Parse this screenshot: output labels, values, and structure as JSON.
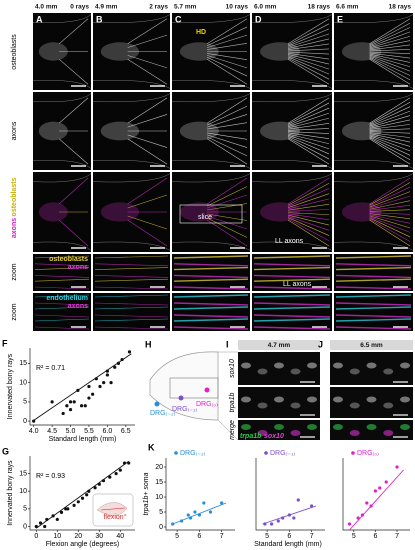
{
  "columns": [
    {
      "panel": "A",
      "length": "4.0 mm",
      "rays": "0 rays"
    },
    {
      "panel": "B",
      "length": "4.9 mm",
      "rays": "2 rays"
    },
    {
      "panel": "C",
      "length": "5.7 mm",
      "rays": "10 rays"
    },
    {
      "panel": "D",
      "length": "6.0 mm",
      "rays": "18 rays"
    },
    {
      "panel": "E",
      "length": "6.6 mm",
      "rays": "18 rays"
    }
  ],
  "rows": {
    "osteoblasts": "osteoblasts",
    "axons": "axons",
    "merge_axons": "axons",
    "merge_osteoblasts": "osteoblasts",
    "zoom1": "zoom",
    "zoom2": "zoom"
  },
  "zoom_keys": {
    "osteoblasts": "osteoblasts",
    "axons1": "axons",
    "endothelium": "endothelium",
    "axons2": "axons"
  },
  "annotations": {
    "hd": "HD",
    "slice": "slice",
    "ll1": "LL axons",
    "ll2": "LL axons"
  },
  "panel_h": {
    "label": "H",
    "drg": [
      "DRG₍₋₂₎",
      "DRG₍₋₁₎",
      "DRG₍₀₎"
    ]
  },
  "panel_i": {
    "label": "I",
    "length": "4.7 mm"
  },
  "panel_j": {
    "label": "J",
    "length": "6.5 mm"
  },
  "ij_rows": [
    "sox10",
    "trpa1b",
    "merge"
  ],
  "merge_key": [
    "trpa1b",
    "sox10"
  ],
  "chart_data": [
    {
      "type": "scatter",
      "panel": "F",
      "xlabel": "Standard length (mm)",
      "ylabel": "Innervated bony rays",
      "annotation": "R² = 0.71",
      "color": "#111111",
      "x": [
        4.0,
        4.5,
        4.8,
        4.9,
        5.0,
        5.0,
        5.1,
        5.2,
        5.3,
        5.4,
        5.5,
        5.5,
        5.6,
        5.7,
        5.8,
        5.9,
        6.0,
        6.0,
        6.1,
        6.2,
        6.3,
        6.4,
        6.6
      ],
      "values": [
        0,
        5,
        2,
        4,
        3,
        5,
        5,
        8,
        4,
        4,
        6,
        9,
        7,
        11,
        9,
        10,
        12,
        13,
        10,
        14,
        15,
        16,
        18
      ],
      "trendline": {
        "x": [
          4.0,
          6.65
        ],
        "values": [
          0.2,
          17.5
        ]
      },
      "xlim": [
        3.9,
        6.75
      ],
      "ylim": [
        -1,
        19
      ],
      "xticks": [
        {
          "value": 4,
          "label": "4.0"
        },
        4.5,
        {
          "value": 5,
          "label": "5.0"
        },
        5.5,
        {
          "value": 6,
          "label": "6.0"
        },
        6.5
      ],
      "yticks": [
        0,
        5,
        10,
        15
      ]
    },
    {
      "type": "scatter",
      "panel": "G",
      "xlabel": "Flexion angle (degrees)",
      "ylabel": "Innervated bony rays",
      "annotation": "R² = 0.93",
      "inset_label": "flexion°",
      "color": "#111111",
      "x": [
        0,
        2,
        4,
        5,
        8,
        10,
        12,
        14,
        15,
        18,
        20,
        22,
        24,
        25,
        28,
        30,
        32,
        35,
        38,
        40,
        42,
        44
      ],
      "values": [
        0,
        1,
        0,
        2,
        3,
        2,
        4,
        5,
        5,
        6,
        7,
        8,
        9,
        10,
        11,
        12,
        13,
        14,
        15,
        16,
        18,
        18
      ],
      "trendline": {
        "x": [
          0,
          44
        ],
        "values": [
          -0.5,
          18.5
        ]
      },
      "xlim": [
        -3,
        47
      ],
      "ylim": [
        -1,
        20
      ],
      "xticks": [
        0,
        10,
        20,
        30,
        40
      ],
      "yticks": [
        0,
        5,
        10,
        15
      ]
    },
    {
      "type": "scatter",
      "panel": "K",
      "ylabel": "trpa1b+ soma",
      "series": [
        {
          "name": "DRG₍₋₂₎",
          "color": "#2a8fd6",
          "x": [
            4.8,
            5.2,
            5.5,
            5.6,
            5.8,
            6.0,
            6.2,
            6.5,
            7.0
          ],
          "values": [
            1,
            2,
            4,
            3,
            5,
            4,
            8,
            5,
            8
          ]
        }
      ],
      "trendline": {
        "x": [
          4.8,
          7.2
        ],
        "values": [
          1,
          8
        ]
      },
      "xlim": [
        4.5,
        7.6
      ],
      "ylim": [
        -1,
        23
      ],
      "xticks": [
        5,
        6,
        7
      ],
      "yticks": [
        0,
        5,
        10,
        15,
        20
      ]
    },
    {
      "type": "scatter",
      "xlabel": "Standard length (mm)",
      "series": [
        {
          "name": "DRG₍₋₁₎",
          "color": "#7b4fc9",
          "x": [
            4.9,
            5.2,
            5.5,
            5.7,
            6.0,
            6.2,
            6.4,
            7.0
          ],
          "values": [
            1,
            1,
            2,
            3,
            4,
            3,
            9,
            7
          ]
        }
      ],
      "trendline": {
        "x": [
          4.8,
          7.2
        ],
        "values": [
          1,
          7
        ]
      },
      "xlim": [
        4.5,
        7.6
      ],
      "ylim": [
        -1,
        23
      ],
      "xticks": [
        5,
        6,
        7
      ]
    },
    {
      "type": "scatter",
      "series": [
        {
          "name": "DRG₍₀₎",
          "color": "#e020c8",
          "x": [
            4.8,
            5.2,
            5.4,
            5.6,
            5.8,
            6.0,
            6.2,
            6.5,
            7.0
          ],
          "values": [
            1,
            3,
            4,
            8,
            7,
            12,
            13,
            15,
            20
          ]
        }
      ],
      "trendline": {
        "x": [
          4.8,
          7.3
        ],
        "values": [
          -1,
          19
        ]
      },
      "xlim": [
        4.5,
        7.6
      ],
      "ylim": [
        -1,
        23
      ],
      "xticks": [
        5,
        6,
        7
      ]
    }
  ]
}
